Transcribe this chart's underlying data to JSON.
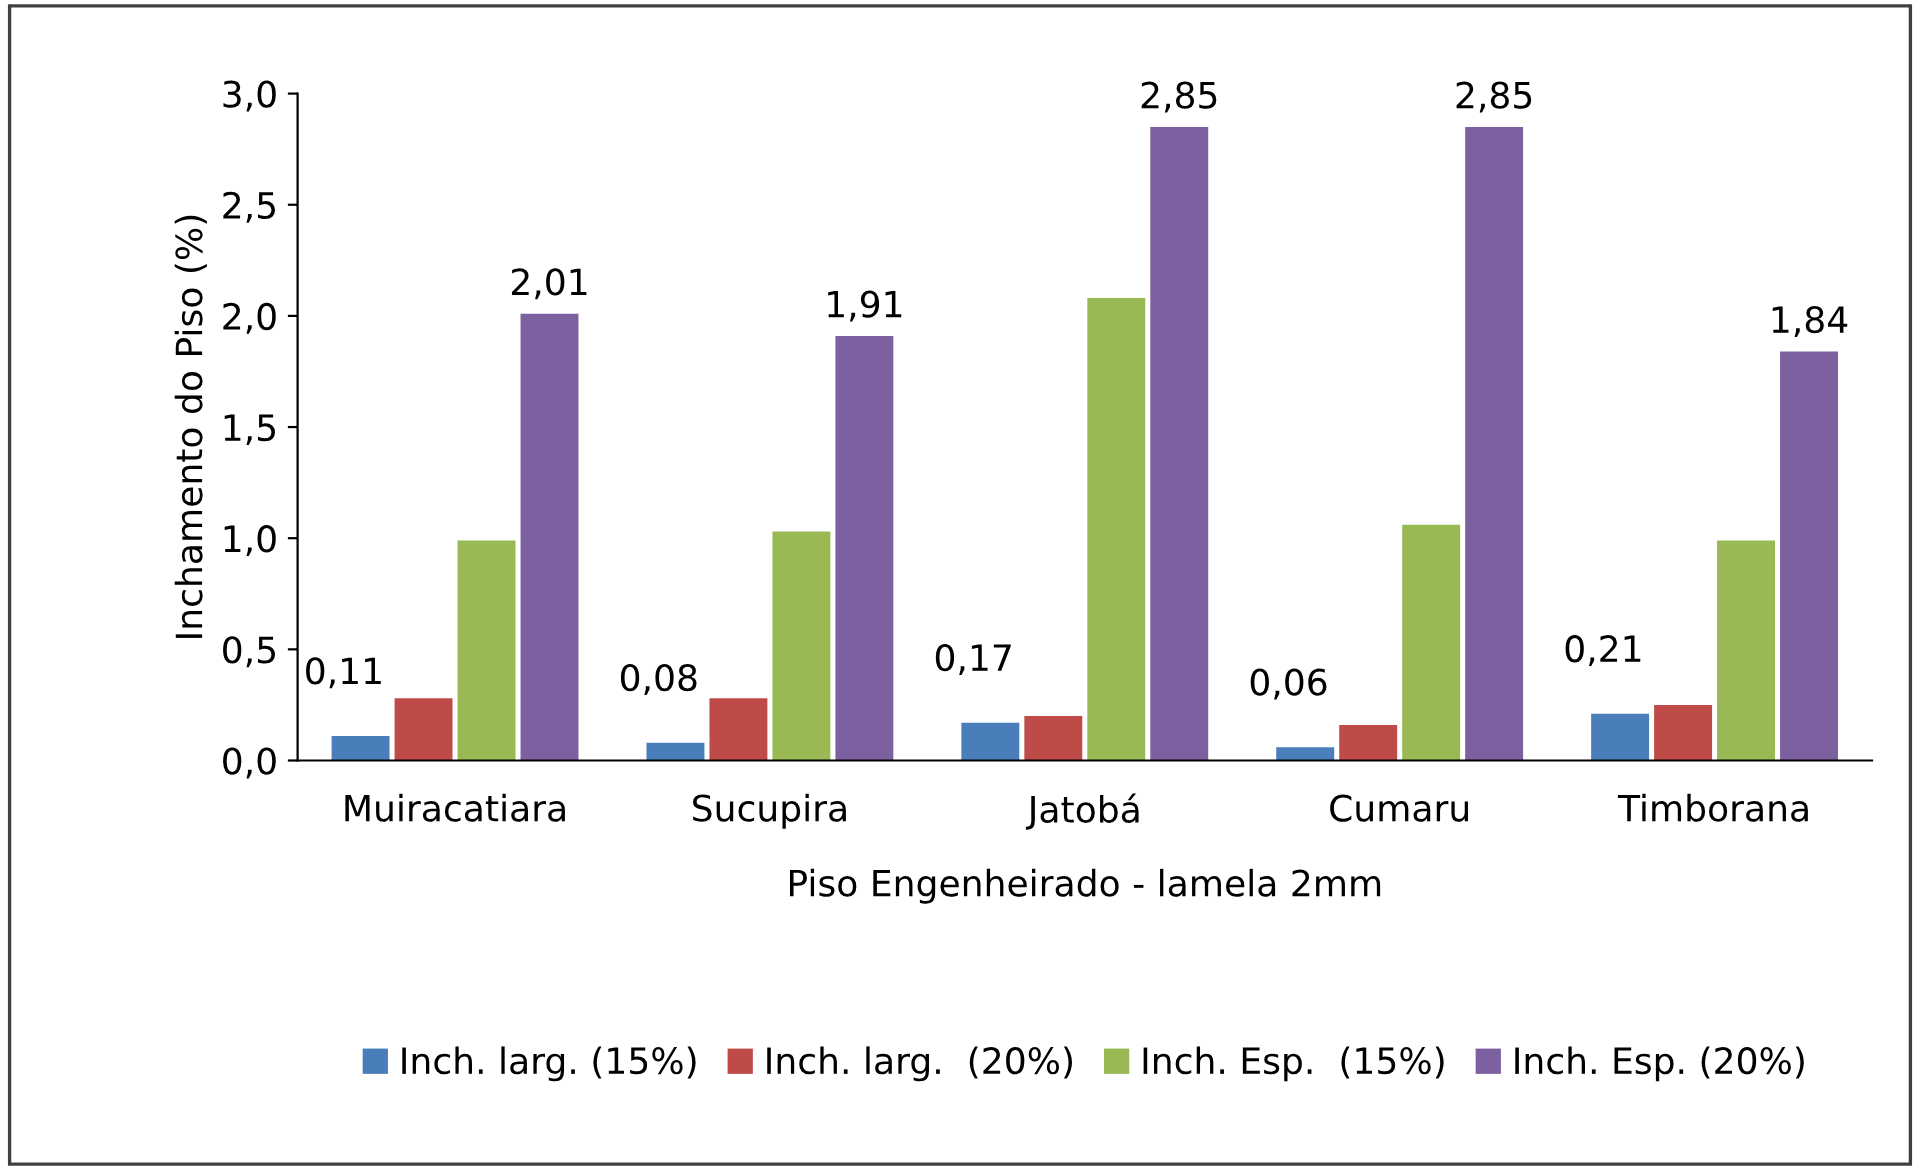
{
  "chart_data": {
    "type": "bar",
    "xlabel": "Piso Engenheirado - lamela 2mm",
    "ylabel": "Inchamento do Piso (%)",
    "categories": [
      "Muiracatiara",
      "Sucupira",
      "Jatobá",
      "Cumaru",
      "Timborana"
    ],
    "series": [
      {
        "name": "Inch. larg. (15%)",
        "color": "#4a7ebb",
        "values": [
          0.11,
          0.08,
          0.17,
          0.06,
          0.21
        ],
        "value_labels": [
          "0,11",
          "0,08",
          "0,17",
          "0,06",
          "0,21"
        ]
      },
      {
        "name": "Inch. larg.  (20%)",
        "color": "#be4b48",
        "values": [
          0.28,
          0.28,
          0.2,
          0.16,
          0.25
        ]
      },
      {
        "name": "Inch. Esp.  (15%)",
        "color": "#98b954",
        "values": [
          0.99,
          1.03,
          2.08,
          1.06,
          0.99
        ]
      },
      {
        "name": "Inch. Esp. (20%)",
        "color": "#7d60a0",
        "values": [
          2.01,
          1.91,
          2.85,
          2.85,
          1.84
        ],
        "value_labels": [
          "2,01",
          "1,91",
          "2,85",
          "2,85",
          "1,84"
        ]
      }
    ],
    "ylim": [
      0,
      3
    ],
    "yticks": [
      {
        "value": 0,
        "label": "0,0"
      },
      {
        "value": 0.5,
        "label": "0,5"
      },
      {
        "value": 1,
        "label": "1,0"
      },
      {
        "value": 1.5,
        "label": "1,5"
      },
      {
        "value": 2,
        "label": "2,0"
      },
      {
        "value": 2.5,
        "label": "2,5"
      },
      {
        "value": 3,
        "label": "3,0"
      }
    ],
    "grid": false,
    "legend": "bottom"
  }
}
